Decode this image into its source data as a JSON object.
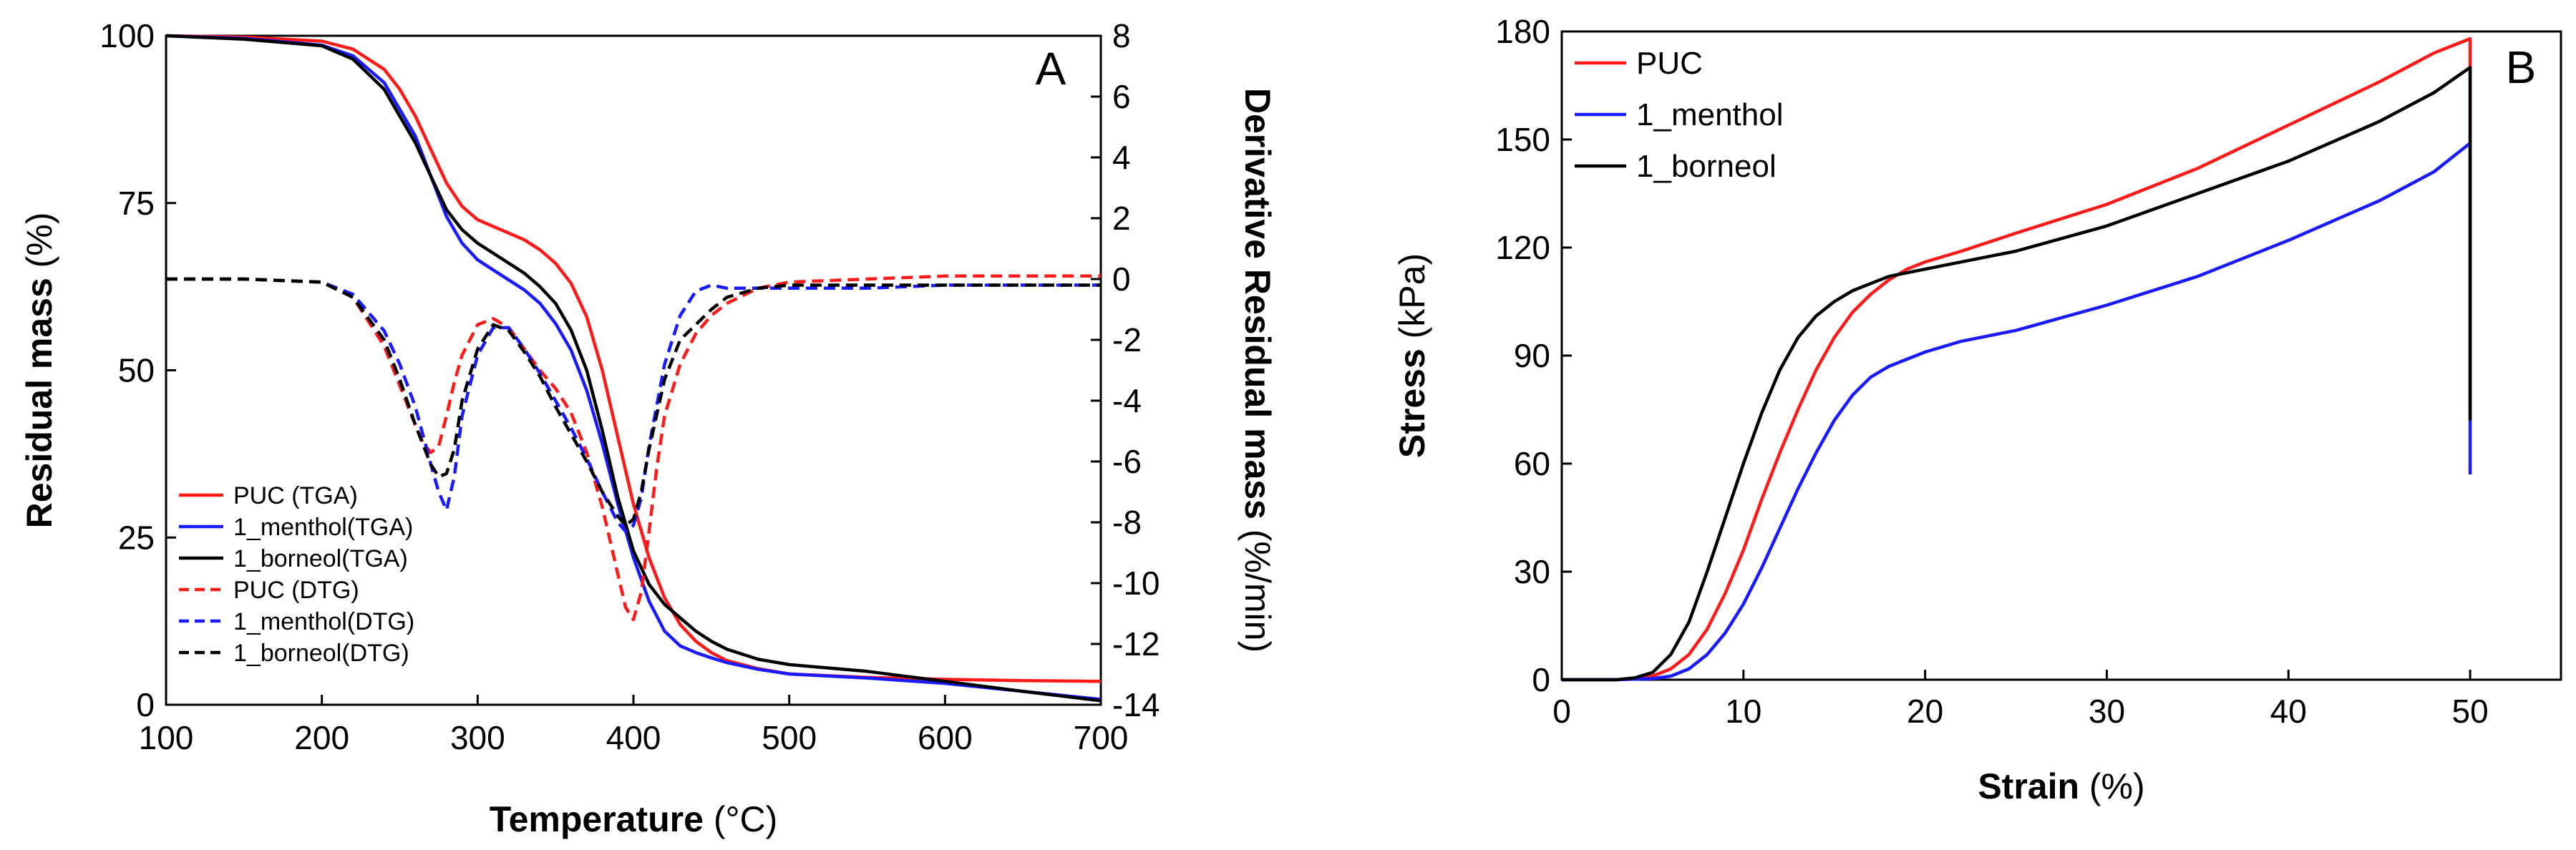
{
  "chart_data": [
    {
      "type": "line",
      "panel_label": "A",
      "xlabel": "Temperature",
      "xlabel_unit": "(°C)",
      "ylabel_left": "Residual mass",
      "ylabel_left_unit": "(%)",
      "ylabel_right": "Derivative Residual mass",
      "ylabel_right_unit": "(%/min)",
      "xlim": [
        100,
        700
      ],
      "ylim_left": [
        0,
        100
      ],
      "ylim_right": [
        -14,
        8
      ],
      "xticks": [
        100,
        200,
        300,
        400,
        500,
        600,
        700
      ],
      "yticks_left": [
        0,
        25,
        50,
        75,
        100
      ],
      "yticks_right": [
        -14,
        -12,
        -10,
        -8,
        -6,
        -4,
        -2,
        0,
        2,
        4,
        6,
        8
      ],
      "legend_position": "bottom-left",
      "colors": {
        "PUC": "#ff1a1a",
        "menthol": "#1a1aff",
        "borneol": "#000000"
      },
      "series": [
        {
          "name": "PUC (TGA)",
          "axis": "left",
          "style": "solid",
          "color": "#ff1a1a",
          "x": [
            100,
            150,
            200,
            220,
            240,
            250,
            260,
            270,
            280,
            290,
            300,
            310,
            320,
            330,
            340,
            350,
            360,
            370,
            380,
            390,
            400,
            410,
            420,
            430,
            440,
            450,
            460,
            480,
            500,
            550,
            600,
            650,
            700
          ],
          "y": [
            100,
            99.8,
            99.2,
            98,
            95,
            92,
            88,
            83,
            78,
            74.5,
            72.5,
            71.5,
            70.5,
            69.5,
            68,
            66,
            63,
            58,
            50,
            40,
            30,
            22,
            16,
            12,
            9.5,
            7.8,
            6.6,
            5.4,
            4.6,
            4.1,
            3.8,
            3.6,
            3.5
          ]
        },
        {
          "name": "1_menthol(TGA)",
          "axis": "left",
          "style": "solid",
          "color": "#1a1aff",
          "x": [
            100,
            150,
            200,
            220,
            240,
            250,
            260,
            270,
            280,
            290,
            300,
            310,
            320,
            330,
            340,
            350,
            360,
            370,
            380,
            390,
            400,
            410,
            420,
            430,
            440,
            450,
            460,
            480,
            500,
            550,
            600,
            650,
            700
          ],
          "y": [
            100,
            99.6,
            98.6,
            97,
            93,
            89,
            85,
            79,
            73,
            69,
            66.5,
            65,
            63.5,
            62,
            60,
            57,
            53,
            47,
            39,
            30,
            22,
            15.5,
            11,
            8.8,
            7.8,
            7,
            6.3,
            5.3,
            4.6,
            4,
            3.2,
            2,
            0.8
          ]
        },
        {
          "name": "1_borneol(TGA)",
          "axis": "left",
          "style": "solid",
          "color": "#000000",
          "x": [
            100,
            150,
            200,
            220,
            240,
            250,
            260,
            270,
            280,
            290,
            300,
            310,
            320,
            330,
            340,
            350,
            360,
            370,
            380,
            390,
            400,
            410,
            420,
            430,
            440,
            450,
            460,
            480,
            500,
            550,
            600,
            650,
            700
          ],
          "y": [
            100,
            99.5,
            98.5,
            96.5,
            92,
            88,
            84,
            79,
            74,
            71,
            69,
            67.5,
            66,
            64.5,
            62.5,
            60,
            56,
            50,
            41,
            31,
            23,
            18,
            15,
            13,
            11,
            9.5,
            8.3,
            6.8,
            6,
            5,
            3.5,
            2,
            0.6
          ]
        },
        {
          "name": "PUC (DTG)",
          "axis": "right",
          "style": "dashed",
          "color": "#ff1a1a",
          "x": [
            100,
            150,
            200,
            220,
            240,
            250,
            260,
            265,
            270,
            275,
            280,
            285,
            290,
            300,
            310,
            320,
            330,
            340,
            350,
            360,
            370,
            380,
            390,
            395,
            400,
            405,
            410,
            415,
            420,
            430,
            440,
            450,
            460,
            480,
            500,
            550,
            600,
            650,
            700
          ],
          "y": [
            0,
            0,
            -0.1,
            -0.6,
            -2.2,
            -3.5,
            -4.8,
            -5.4,
            -5.7,
            -5.5,
            -4.5,
            -3.4,
            -2.5,
            -1.5,
            -1.3,
            -1.6,
            -2.3,
            -3,
            -3.6,
            -4.4,
            -5.7,
            -7.5,
            -9.7,
            -10.8,
            -11.2,
            -10.3,
            -8.3,
            -6.2,
            -4.5,
            -2.8,
            -1.8,
            -1.2,
            -0.8,
            -0.3,
            -0.1,
            0,
            0.1,
            0.1,
            0.1
          ]
        },
        {
          "name": "1_menthol(DTG)",
          "axis": "right",
          "style": "dashed",
          "color": "#1a1aff",
          "x": [
            100,
            150,
            200,
            220,
            240,
            250,
            260,
            270,
            275,
            280,
            285,
            290,
            300,
            310,
            320,
            330,
            340,
            350,
            360,
            370,
            380,
            390,
            395,
            400,
            405,
            410,
            420,
            430,
            440,
            450,
            460,
            480,
            500,
            550,
            600,
            650,
            700
          ],
          "y": [
            0,
            0,
            -0.1,
            -0.5,
            -1.7,
            -2.8,
            -4.2,
            -6.1,
            -7,
            -7.6,
            -6.5,
            -4.5,
            -2.5,
            -1.6,
            -1.6,
            -2.3,
            -3.1,
            -4,
            -4.9,
            -5.9,
            -7,
            -8,
            -8.3,
            -8.1,
            -7.2,
            -5.5,
            -2.8,
            -1.2,
            -0.4,
            -0.2,
            -0.3,
            -0.3,
            -0.3,
            -0.3,
            -0.2,
            -0.2,
            -0.2
          ]
        },
        {
          "name": "1_borneol(DTG)",
          "axis": "right",
          "style": "dashed",
          "color": "#000000",
          "x": [
            100,
            150,
            200,
            220,
            240,
            250,
            260,
            270,
            275,
            280,
            285,
            290,
            300,
            310,
            320,
            330,
            340,
            350,
            360,
            370,
            380,
            390,
            395,
            400,
            405,
            410,
            420,
            430,
            440,
            450,
            460,
            480,
            500,
            550,
            600,
            650,
            700
          ],
          "y": [
            0,
            0,
            -0.1,
            -0.6,
            -2,
            -3.3,
            -4.8,
            -6.1,
            -6.5,
            -6.4,
            -5.6,
            -4,
            -2.3,
            -1.5,
            -1.7,
            -2.4,
            -3.2,
            -4.2,
            -5.1,
            -6,
            -7,
            -7.8,
            -8.1,
            -7.9,
            -7,
            -5.6,
            -3.3,
            -2,
            -1.5,
            -1,
            -0.6,
            -0.3,
            -0.2,
            -0.2,
            -0.2,
            -0.2,
            -0.2
          ]
        }
      ]
    },
    {
      "type": "line",
      "panel_label": "B",
      "xlabel": "Strain",
      "xlabel_unit": "(%)",
      "ylabel": "Stress",
      "ylabel_unit": "(kPa)",
      "xlim": [
        0,
        55
      ],
      "ylim": [
        0,
        180
      ],
      "xticks": [
        0,
        10,
        20,
        30,
        40,
        50
      ],
      "yticks": [
        0,
        30,
        60,
        90,
        120,
        150,
        180
      ],
      "legend_position": "top-left",
      "series": [
        {
          "name": "PUC",
          "color": "#ff1a1a",
          "x": [
            0,
            3,
            4,
            5,
            6,
            7,
            8,
            9,
            10,
            11,
            12,
            13,
            14,
            15,
            16,
            17,
            18,
            19,
            20,
            22,
            25,
            30,
            35,
            40,
            45,
            48,
            49.5,
            50,
            50
          ],
          "y": [
            0,
            0,
            0.3,
            1,
            3,
            7,
            14,
            24,
            36,
            50,
            63,
            75,
            86,
            95,
            102,
            107,
            111,
            114,
            116,
            119,
            124,
            132,
            142,
            154,
            166,
            174,
            177,
            178,
            74
          ]
        },
        {
          "name": "1_menthol",
          "color": "#1a1aff",
          "x": [
            0,
            3,
            5,
            6,
            7,
            8,
            9,
            10,
            11,
            12,
            13,
            14,
            15,
            16,
            17,
            18,
            19,
            20,
            22,
            25,
            30,
            35,
            40,
            45,
            48,
            49.5,
            50,
            50
          ],
          "y": [
            0,
            0,
            0.3,
            1,
            3,
            7,
            13,
            21,
            31,
            42,
            53,
            63,
            72,
            79,
            84,
            87,
            89,
            91,
            94,
            97,
            104,
            112,
            122,
            133,
            141,
            147,
            149,
            57
          ]
        },
        {
          "name": "1_borneol",
          "color": "#000000",
          "x": [
            0,
            3,
            4,
            5,
            6,
            7,
            8,
            9,
            10,
            11,
            12,
            13,
            14,
            15,
            16,
            17,
            18,
            20,
            22,
            25,
            30,
            35,
            40,
            45,
            48,
            50,
            50
          ],
          "y": [
            0,
            0,
            0.5,
            2,
            7,
            16,
            30,
            45,
            60,
            74,
            86,
            95,
            101,
            105,
            108,
            110,
            112,
            114,
            116,
            119,
            126,
            135,
            144,
            155,
            163,
            170,
            72
          ]
        }
      ]
    }
  ]
}
